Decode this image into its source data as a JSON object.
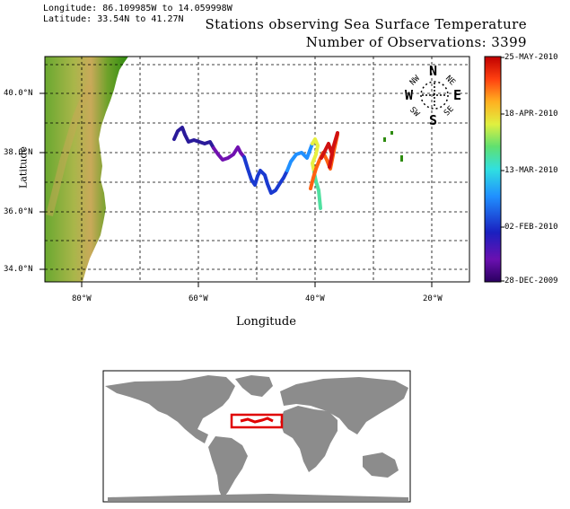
{
  "header": {
    "longitude_range": "Longitude: 86.109985W to 14.059998W",
    "latitude_range": "Latitude: 33.54N to 41.27N"
  },
  "map": {
    "title": "Stations observing Sea Surface Temperature",
    "subtitle": "Number of Observations: 3399",
    "xlabel": "Longitude",
    "ylabel": "Latitude",
    "x_ticks": [
      "80°W",
      "60°W",
      "40°W",
      "20°W"
    ],
    "y_ticks": [
      "40.0°N",
      "38.0°N",
      "36.0°N",
      "34.0°N"
    ],
    "lon_range": [
      -86.11,
      -14.06
    ],
    "lat_range": [
      33.54,
      41.27
    ]
  },
  "colorbar": {
    "labels": [
      "25-MAY-2010",
      "18-APR-2010",
      "13-MAR-2010",
      "02-FEB-2010",
      "28-DEC-2009"
    ]
  },
  "compass": {
    "labels": [
      "N",
      "NE",
      "E",
      "SE",
      "S",
      "SW",
      "W",
      "NW"
    ]
  },
  "colors": {
    "ocean": "#ffffff",
    "land_low": "#2e8b0f",
    "land_high": "#c8a855",
    "inset_land": "#8c8c8c",
    "highlight_box": "#e00000"
  }
}
